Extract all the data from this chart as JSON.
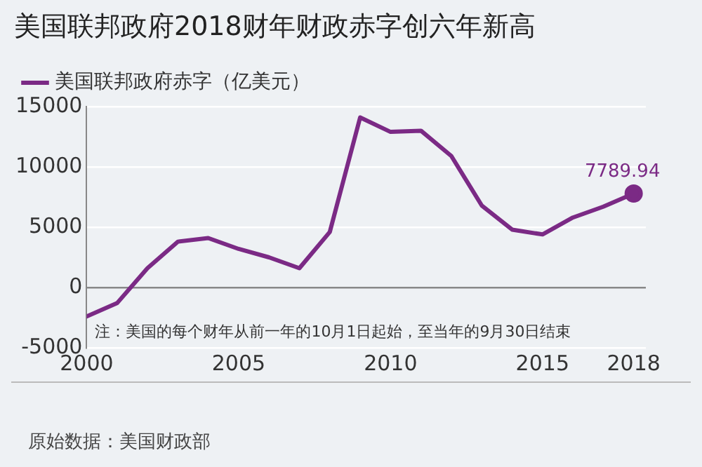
{
  "chart_data": {
    "type": "line",
    "title": "美国联邦政府2018财年财政赤字创六年新高",
    "x": [
      2000,
      2001,
      2002,
      2003,
      2004,
      2005,
      2006,
      2007,
      2008,
      2009,
      2010,
      2011,
      2012,
      2013,
      2014,
      2015,
      2016,
      2017,
      2018
    ],
    "series": [
      {
        "name": "美国联邦政府赤字（亿美元）",
        "color": "#7b2a85",
        "values": [
          -2400,
          -1300,
          1600,
          3800,
          4100,
          3200,
          2500,
          1600,
          4600,
          14100,
          12900,
          13000,
          10900,
          6800,
          4800,
          4400,
          5800,
          6700,
          7789.94
        ],
        "value_labels": [
          null,
          null,
          null,
          null,
          null,
          null,
          null,
          null,
          null,
          null,
          null,
          null,
          null,
          null,
          null,
          null,
          null,
          null,
          "7789.94"
        ]
      }
    ],
    "xlim": [
      2000,
      2018.4
    ],
    "xticks": [
      2000,
      2005,
      2010,
      2015,
      2018
    ],
    "ylim": [
      -5000,
      15000
    ],
    "yticks": [
      -5000,
      0,
      5000,
      10000,
      15000
    ],
    "grid": "y",
    "legend": "top left",
    "marker": "none",
    "line_style": "solid",
    "annotations": [
      "注：美国的每个财年从前一年的10月1日起始，至当年的9月30日结束",
      "原始数据：美国财政部"
    ]
  }
}
